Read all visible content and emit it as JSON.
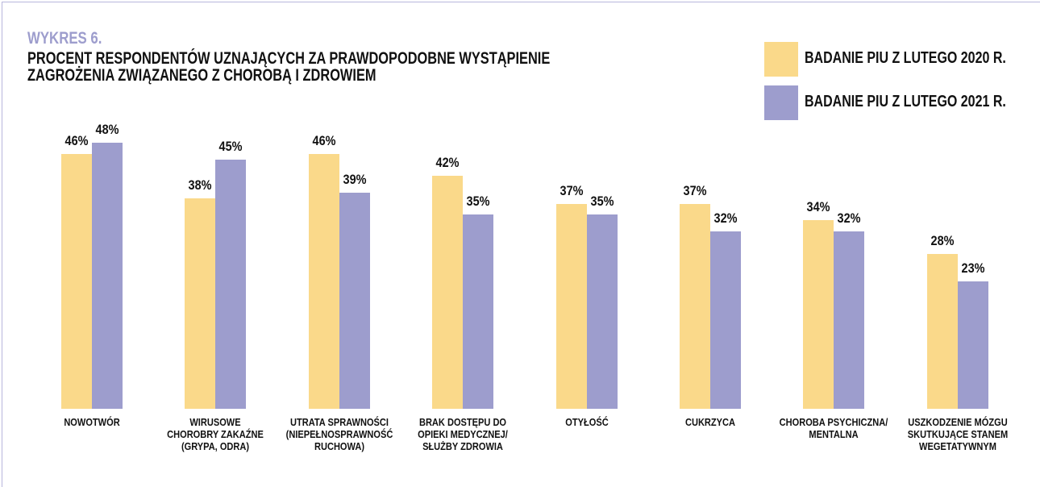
{
  "chart_data": {
    "type": "bar",
    "label": "WYKRES 6.",
    "title": "PROCENT RESPONDENTÓW UZNAJĄCYCH ZA PRAWDOPODOBNE WYSTĄPIENIE\nZAGROŻENIA ZWIĄZANEGO Z CHOROBĄ I ZDROWIEM",
    "categories": [
      "NOWOTWÓR",
      "WIRUSOWE\nCHOROBRY ZAKAŹNE\n(GRYPA, ODRA)",
      "UTRATA SPRAWNOŚCI\n(NIEPEŁNOSPRAWNOŚĆ\nRUCHOWA)",
      "BRAK DOSTĘPU DO\nOPIEKI MEDYCZNEJ/\nSŁUŻBY ZDROWIA",
      "OTYŁOŚĆ",
      "CUKRZYCA",
      "CHOROBA PSYCHICZNA/\nMENTALNA",
      "USZKODZENIE MÓZGU\nSKUTKUJĄCE STANEM\nWEGETATYWNYM"
    ],
    "series": [
      {
        "name": "BADANIE PIU Z LUTEGO 2020 R.",
        "color": "#fad98a",
        "values": [
          46,
          38,
          46,
          42,
          37,
          37,
          34,
          28
        ],
        "value_labels": [
          "46%",
          "38%",
          "46%",
          "42%",
          "37%",
          "37%",
          "34%",
          "28%"
        ]
      },
      {
        "name": "BADANIE PIU Z LUTEGO 2021 R.",
        "color": "#9d9dcd",
        "values": [
          48,
          45,
          39,
          35,
          35,
          32,
          32,
          23
        ],
        "value_labels": [
          "48%",
          "45%",
          "39%",
          "35%",
          "35%",
          "32%",
          "32%",
          "23%"
        ]
      }
    ],
    "legend": "top-right"
  }
}
